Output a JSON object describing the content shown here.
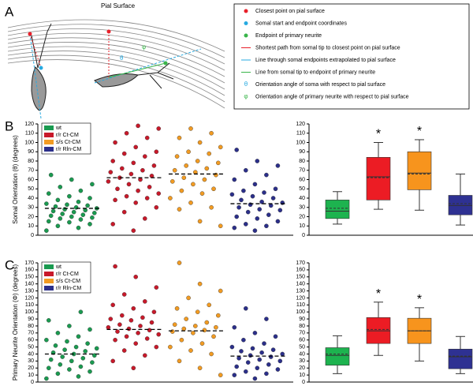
{
  "panel_a": {
    "label": "A",
    "pial_label": "Pial Surface",
    "theta_label": "θ",
    "phi_label": "φ",
    "legend": [
      {
        "marker": "dot",
        "color": "#e8202a",
        "text": "Closest point on pial surface"
      },
      {
        "marker": "dot",
        "color": "#27aae1",
        "text": "Somal start and endpoint coordinates"
      },
      {
        "marker": "dot",
        "color": "#39b54a",
        "text": "Endpoint of primary neurite"
      },
      {
        "marker": "line",
        "color": "#e8202a",
        "text": "Shortest path from somal tip to closest point on pial surface"
      },
      {
        "marker": "line",
        "color": "#27aae1",
        "text": "Line through somal endpoints extrapolated to pial surface"
      },
      {
        "marker": "line",
        "color": "#39b54a",
        "text": "Line from somal tip to endpoint of primary neurite"
      },
      {
        "marker": "symbol",
        "symbol": "θ",
        "color": "#27aae1",
        "text": "Orientation angle of soma with respect to pial surface"
      },
      {
        "marker": "symbol",
        "symbol": "φ",
        "color": "#39b54a",
        "text": "Orientation angle of primary neurite with respect to pial surface"
      }
    ]
  },
  "chart_data": [
    {
      "type": "strip",
      "panel_label": "B",
      "y_label": "Somal Orientation (θ) (degrees)",
      "ylim": [
        0,
        120
      ],
      "yticks": [
        0,
        10,
        20,
        30,
        40,
        50,
        60,
        70,
        80,
        90,
        100,
        110,
        120
      ],
      "series": [
        {
          "name": "wt",
          "color": "#1a9a50",
          "mean": 29,
          "values": [
            5,
            8,
            10,
            12,
            14,
            15,
            17,
            18,
            19,
            20,
            21,
            22,
            23,
            24,
            25,
            26,
            27,
            28,
            29,
            30,
            31,
            32,
            33,
            34,
            36,
            38,
            40,
            42,
            45,
            48,
            52,
            55,
            60,
            65
          ]
        },
        {
          "name": "r/r Ct-CM",
          "color": "#c8192a",
          "mean": 62,
          "values": [
            5,
            12,
            18,
            25,
            30,
            35,
            38,
            40,
            42,
            45,
            48,
            50,
            52,
            55,
            58,
            60,
            62,
            64,
            66,
            68,
            70,
            72,
            75,
            78,
            80,
            85,
            88,
            90,
            95,
            100,
            105,
            110,
            115,
            118
          ]
        },
        {
          "name": "s/s Ct-CM",
          "color": "#f29b22",
          "mean": 66,
          "values": [
            10,
            15,
            28,
            30,
            35,
            40,
            45,
            48,
            50,
            55,
            58,
            60,
            62,
            65,
            68,
            70,
            72,
            75,
            78,
            80,
            85,
            88,
            90,
            95,
            100,
            105,
            110,
            115
          ]
        },
        {
          "name": "r/r Rln-CM",
          "color": "#2b2f8a",
          "mean": 34,
          "values": [
            5,
            8,
            10,
            12,
            15,
            18,
            20,
            22,
            25,
            27,
            28,
            30,
            32,
            33,
            35,
            36,
            38,
            40,
            42,
            44,
            46,
            48,
            50,
            55,
            60,
            65,
            70,
            75,
            80,
            92
          ]
        }
      ]
    },
    {
      "type": "box",
      "ylim": [
        0,
        120
      ],
      "yticks": [
        0,
        10,
        20,
        30,
        40,
        50,
        60,
        70,
        80,
        90,
        100,
        110,
        120
      ],
      "series": [
        {
          "color": "#1db34f",
          "min": 12,
          "q1": 18,
          "median": 26,
          "mean": 29,
          "q3": 38,
          "max": 47
        },
        {
          "color": "#ec1c24",
          "min": 28,
          "q1": 38,
          "median": 63,
          "mean": 62,
          "q3": 84,
          "max": 100,
          "annotation": "*"
        },
        {
          "color": "#f7941d",
          "min": 27,
          "q1": 49,
          "median": 67,
          "mean": 66,
          "q3": 90,
          "max": 103,
          "annotation": "*"
        },
        {
          "color": "#2e3192",
          "min": 11,
          "q1": 22,
          "median": 32,
          "mean": 34,
          "q3": 43,
          "max": 66
        }
      ]
    },
    {
      "type": "strip",
      "panel_label": "C",
      "y_label": "Primary Neurite Orientation (Φ) (degrees)",
      "ylim": [
        0,
        170
      ],
      "yticks": [
        0,
        10,
        20,
        30,
        40,
        50,
        60,
        70,
        80,
        90,
        100,
        110,
        120,
        130,
        140,
        150,
        160,
        170
      ],
      "series": [
        {
          "name": "wt",
          "color": "#1a9a50",
          "mean": 40,
          "values": [
            5,
            8,
            12,
            15,
            18,
            20,
            22,
            25,
            28,
            30,
            32,
            34,
            36,
            38,
            40,
            42,
            44,
            46,
            48,
            50,
            52,
            55,
            58,
            60,
            65,
            70,
            75,
            80,
            88,
            100
          ]
        },
        {
          "name": "r/r Ct-CM",
          "color": "#c8192a",
          "mean": 75,
          "values": [
            20,
            30,
            38,
            45,
            50,
            55,
            60,
            62,
            65,
            68,
            70,
            72,
            74,
            76,
            78,
            80,
            82,
            85,
            88,
            90,
            92,
            95,
            100,
            105,
            110,
            115,
            125,
            135,
            150,
            165
          ]
        },
        {
          "name": "s/s Ct-CM",
          "color": "#f29b22",
          "mean": 73,
          "values": [
            10,
            20,
            30,
            40,
            45,
            50,
            55,
            60,
            65,
            70,
            72,
            74,
            76,
            78,
            80,
            82,
            85,
            90,
            95,
            100,
            105,
            110,
            120,
            130,
            140,
            170
          ]
        },
        {
          "name": "r/r Rln-CM",
          "color": "#2b2f8a",
          "mean": 37,
          "values": [
            5,
            10,
            12,
            15,
            18,
            20,
            22,
            25,
            28,
            30,
            32,
            34,
            36,
            38,
            40,
            42,
            44,
            46,
            48,
            50,
            55,
            60,
            65,
            70,
            78,
            90,
            105
          ]
        }
      ]
    },
    {
      "type": "box",
      "ylim": [
        0,
        170
      ],
      "yticks": [
        0,
        10,
        20,
        30,
        40,
        50,
        60,
        70,
        80,
        90,
        100,
        110,
        120,
        130,
        140,
        150,
        160,
        170
      ],
      "series": [
        {
          "color": "#1db34f",
          "min": 12,
          "q1": 24,
          "median": 38,
          "mean": 40,
          "q3": 49,
          "max": 66
        },
        {
          "color": "#ec1c24",
          "min": 38,
          "q1": 55,
          "median": 73,
          "mean": 75,
          "q3": 92,
          "max": 114,
          "annotation": "*"
        },
        {
          "color": "#f7941d",
          "min": 30,
          "q1": 55,
          "median": 73,
          "mean": 73,
          "q3": 91,
          "max": 106,
          "annotation": "*"
        },
        {
          "color": "#2e3192",
          "min": 12,
          "q1": 19,
          "median": 36,
          "mean": 37,
          "q3": 47,
          "max": 65
        }
      ]
    }
  ]
}
